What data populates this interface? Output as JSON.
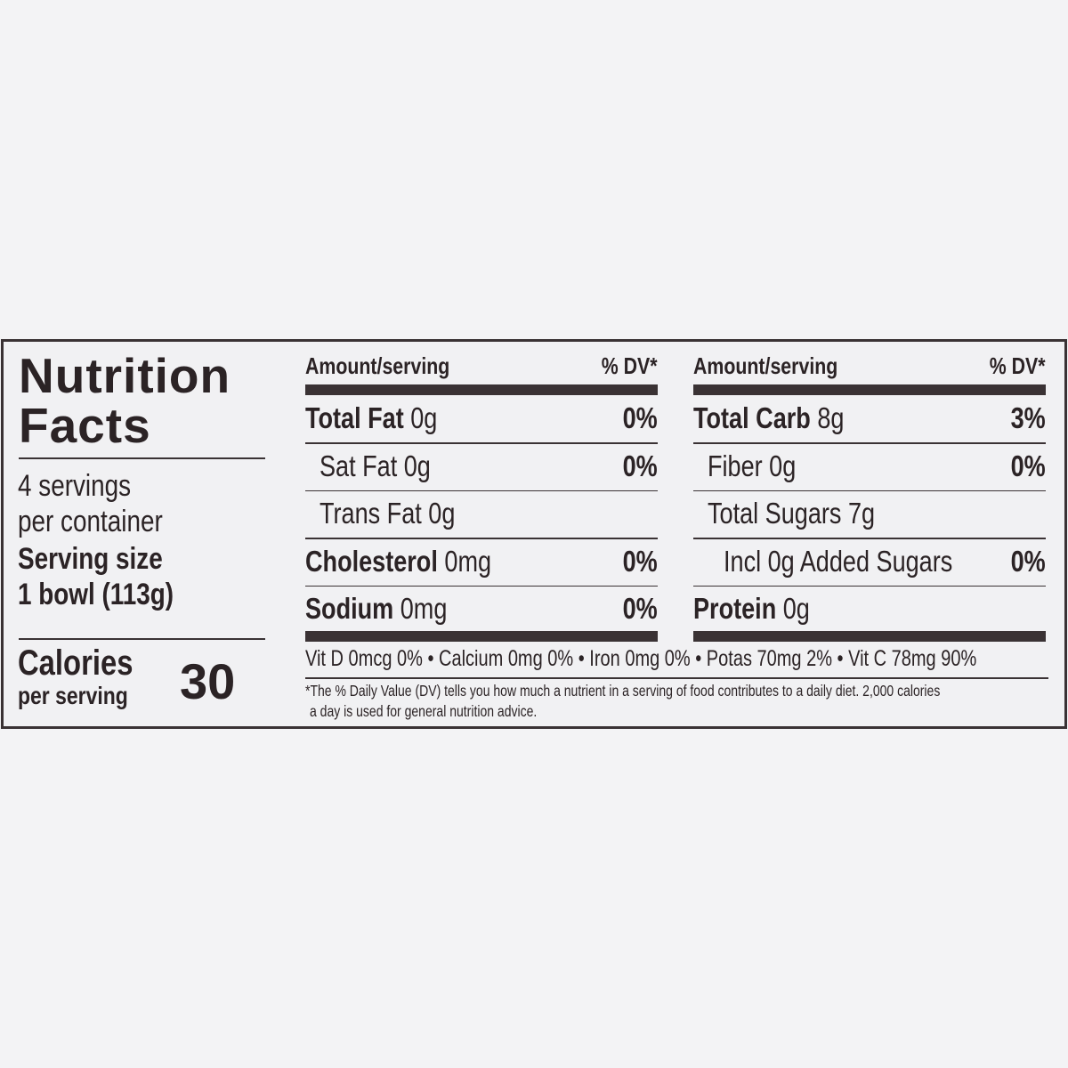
{
  "title_line1": "Nutrition",
  "title_line2": "Facts",
  "servings_line1": "4 servings",
  "servings_line2": "per container",
  "serving_size_label": "Serving size",
  "serving_size_value": "1 bowl (113g)",
  "calories_label": "Calories",
  "calories_sub": "per serving",
  "calories_value": "30",
  "left_table": {
    "header_amount": "Amount/serving",
    "header_dv": "% DV*",
    "rows": [
      {
        "name": "Total Fat",
        "amount": "0g",
        "dv": "0%",
        "bold": true,
        "indent": 0
      },
      {
        "name": "Sat Fat",
        "amount": "0g",
        "dv": "0%",
        "bold": false,
        "indent": 1
      },
      {
        "name": "Trans Fat",
        "amount": "0g",
        "dv": "",
        "bold": false,
        "indent": 1
      },
      {
        "name": "Cholesterol",
        "amount": "0mg",
        "dv": "0%",
        "bold": true,
        "indent": 0
      },
      {
        "name": "Sodium",
        "amount": "0mg",
        "dv": "0%",
        "bold": true,
        "indent": 0
      }
    ]
  },
  "right_table": {
    "header_amount": "Amount/serving",
    "header_dv": "% DV*",
    "rows": [
      {
        "name": "Total Carb",
        "amount": "8g",
        "dv": "3%",
        "bold": true,
        "indent": 0
      },
      {
        "name": "Fiber",
        "amount": "0g",
        "dv": "0%",
        "bold": false,
        "indent": 1
      },
      {
        "name": "Total Sugars",
        "amount": "7g",
        "dv": "",
        "bold": false,
        "indent": 1
      },
      {
        "name": "Incl 0g Added Sugars",
        "amount": "",
        "dv": "0%",
        "bold": false,
        "indent": 2
      },
      {
        "name": "Protein",
        "amount": "0g",
        "dv": "",
        "bold": true,
        "indent": 0
      }
    ]
  },
  "vitamins": "Vit D 0mcg 0% • Calcium 0mg 0% • Iron 0mg 0% • Potas 70mg 2% • Vit C 78mg 90%",
  "footnote_line1": "*The % Daily Value (DV) tells you how much a nutrient in a serving of food contributes to a daily diet. 2,000 calories",
  "footnote_line2": "a day is used for general nutrition advice.",
  "colors": {
    "ink": "#2b2325",
    "background": "#f1f1f3"
  }
}
